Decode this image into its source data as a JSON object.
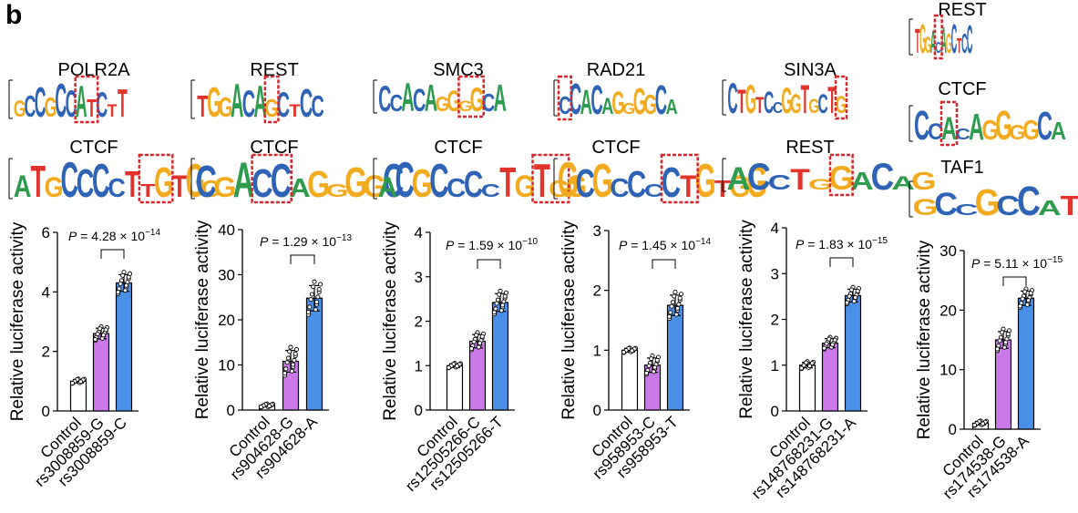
{
  "panel_label": "b",
  "colors": {
    "A": "#2e9b4f",
    "C": "#2f63b5",
    "G": "#f2ab1e",
    "T": "#e0342d",
    "control": "#ffffff",
    "variant1": "#c97ae8",
    "variant2": "#4a90e8",
    "highlight": "#d7262b"
  },
  "chart_data": [
    {
      "type": "bar",
      "ylabel": "Relative luciferase activity",
      "categories": [
        "Control",
        "rs3008859-G",
        "rs3008859-C"
      ],
      "values": [
        1.0,
        2.6,
        4.3
      ],
      "errors": [
        0.06,
        0.18,
        0.28
      ],
      "ylim": [
        0,
        6
      ],
      "yticks": [
        0,
        2,
        4,
        6
      ],
      "pvalue": {
        "prefix": "P = 4.28 × 10",
        "exp": "−14"
      },
      "motifs": [
        {
          "name": "POLR2A",
          "seq": "GCCGCCATCTT"
        },
        {
          "name": "CTCF",
          "seq": "ATGCCCCTTGTGG"
        }
      ]
    },
    {
      "type": "bar",
      "ylabel": "Relative luciferase activity",
      "categories": [
        "Control",
        "rs904628-G",
        "rs904628-A"
      ],
      "values": [
        1.0,
        10.8,
        24.8
      ],
      "errors": [
        0.3,
        2.4,
        2.8
      ],
      "ylim": [
        0,
        40
      ],
      "yticks": [
        0,
        10,
        20,
        30,
        40
      ],
      "pvalue": {
        "prefix": "P = 1.29 × 10",
        "exp": "−13"
      },
      "motifs": [
        {
          "name": "REST",
          "seq": "TGGACAGCTCC"
        },
        {
          "name": "CTCF",
          "seq": "CGACCAGGGGC"
        }
      ]
    },
    {
      "type": "bar",
      "ylabel": "Relative luciferase activity",
      "categories": [
        "Control",
        "rs12505266-C",
        "rs12505266-T"
      ],
      "values": [
        1.0,
        1.55,
        2.42
      ],
      "errors": [
        0.04,
        0.15,
        0.2
      ],
      "ylim": [
        0,
        4
      ],
      "yticks": [
        0,
        1,
        2,
        3,
        4
      ],
      "pvalue": {
        "prefix": "P = 1.59 × 10",
        "exp": "−10"
      },
      "motifs": [
        {
          "name": "SMC3",
          "seq": "CCACAGGGGCA"
        },
        {
          "name": "CTCF",
          "seq": "ACGCCCCTGTGG"
        }
      ]
    },
    {
      "type": "bar",
      "ylabel": "Relative luciferase activity",
      "categories": [
        "Control",
        "rs958953-C",
        "rs958953-T"
      ],
      "values": [
        1.0,
        0.75,
        1.75
      ],
      "errors": [
        0.03,
        0.12,
        0.17
      ],
      "ylim": [
        0,
        3
      ],
      "yticks": [
        0,
        1,
        2,
        3
      ],
      "pvalue": {
        "prefix": "P = 1.45 × 10",
        "exp": "−14"
      },
      "motifs": [
        {
          "name": "RAD21",
          "seq": "CCACAGGGGCA"
        },
        {
          "name": "CTCF",
          "seq": "GCGCCCCTGTGG"
        }
      ]
    },
    {
      "type": "bar",
      "ylabel": "Relative luciferase activity",
      "categories": [
        "Control",
        "rs148768231-G",
        "rs148768231-A"
      ],
      "values": [
        1.0,
        1.48,
        2.52
      ],
      "errors": [
        0.06,
        0.1,
        0.14
      ],
      "ylim": [
        0,
        4
      ],
      "yticks": [
        0,
        1,
        2,
        3,
        4
      ],
      "pvalue": {
        "prefix": "P = 1.83 × 10",
        "exp": "−15"
      },
      "motifs": [
        {
          "name": "SIN3A",
          "seq": "CTGTCCGGTGCTG"
        },
        {
          "name": "REST",
          "seq": "ACCTGGACAG"
        }
      ]
    },
    {
      "type": "bar",
      "ylabel": "Relative luciferase activity",
      "categories": [
        "Control",
        "rs174538-G",
        "rs174538-A"
      ],
      "values": [
        1.0,
        15.0,
        22.0
      ],
      "errors": [
        0.3,
        1.4,
        1.2
      ],
      "ylim": [
        0,
        30
      ],
      "yticks": [
        0,
        10,
        20,
        30
      ],
      "pvalue": {
        "prefix": "P = 5.11 × 10",
        "exp": "−15"
      },
      "motifs": [
        {
          "name": "REST",
          "seq": "TGGACAGCTCC"
        },
        {
          "name": "CTCF",
          "seq": "CCACAGGGGCA"
        },
        {
          "name": "TAF1",
          "seq": "GCCGCCATCTT"
        }
      ]
    }
  ]
}
